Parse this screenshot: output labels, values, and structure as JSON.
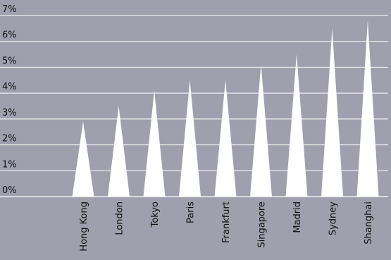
{
  "chart_data": {
    "type": "bar",
    "categories": [
      "Hong Kong",
      "London",
      "Tokyo",
      "Paris",
      "Frankfurt",
      "Singapore",
      "Madrid",
      "Sydney",
      "Shanghai"
    ],
    "values": [
      2.9,
      3.5,
      4.1,
      4.5,
      4.5,
      5.1,
      5.5,
      6.5,
      6.8
    ],
    "title": "",
    "xlabel": "",
    "ylabel": "",
    "ylim": [
      0,
      7
    ],
    "yticks": [
      "0%",
      "1%",
      "2%",
      "3%",
      "4%",
      "5%",
      "6%",
      "7%"
    ],
    "grid": true,
    "colors": {
      "background": "#a09fae",
      "marks": "#ffffff",
      "text": "#111111"
    }
  }
}
